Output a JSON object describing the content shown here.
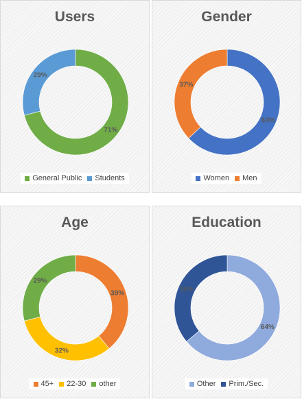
{
  "chart_data": [
    {
      "type": "pie",
      "title": "Users",
      "categories": [
        "General Public",
        "Students"
      ],
      "values": [
        71,
        29
      ],
      "labels": [
        "71%",
        "29%"
      ],
      "colors": [
        "#70ad47",
        "#5b9bd5"
      ],
      "start_category": "General Public",
      "legend": "bottom"
    },
    {
      "type": "pie",
      "title": "Gender",
      "categories": [
        "Women",
        "Men"
      ],
      "values": [
        63,
        37
      ],
      "labels": [
        "63%",
        "37%"
      ],
      "colors": [
        "#4472c4",
        "#ed7d31"
      ],
      "start_category": "Women",
      "legend": "bottom"
    },
    {
      "type": "pie",
      "title": "Age",
      "categories": [
        "45+",
        "22-30",
        "other"
      ],
      "values": [
        39,
        32,
        29
      ],
      "labels": [
        "39%",
        "32%",
        "29%"
      ],
      "colors": [
        "#ed7d31",
        "#ffc000",
        "#70ad47"
      ],
      "start_category": "45+",
      "legend": "bottom"
    },
    {
      "type": "pie",
      "title": "Education",
      "categories": [
        "Other",
        "Prim./Sec."
      ],
      "values": [
        64,
        36
      ],
      "labels": [
        "64%",
        "36%"
      ],
      "colors": [
        "#8faadc",
        "#2f5597"
      ],
      "start_category": "Other",
      "legend": "bottom"
    }
  ]
}
